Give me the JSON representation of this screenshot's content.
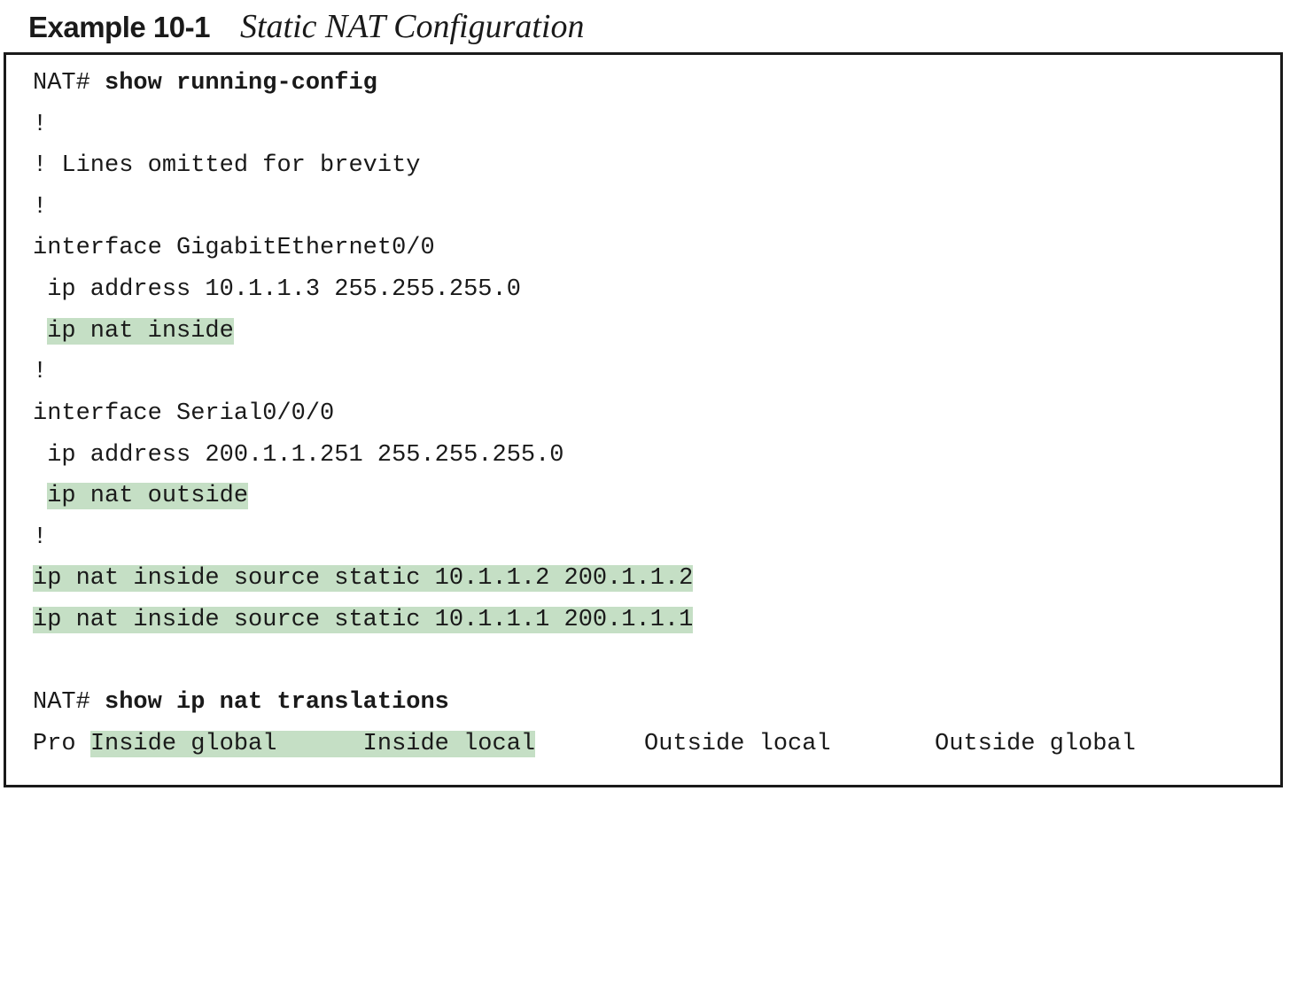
{
  "caption": {
    "label": "Example 10-1",
    "title": "Static NAT Configuration"
  },
  "lines": [
    {
      "prompt": "NAT# ",
      "command": "show running-config"
    },
    {
      "text": "!"
    },
    {
      "text": "! Lines omitted for brevity"
    },
    {
      "text": "!"
    },
    {
      "text": "interface GigabitEthernet0/0"
    },
    {
      "indent": " ",
      "text": "ip address 10.1.1.3 255.255.255.0"
    },
    {
      "indent": " ",
      "highlighted": "ip nat inside"
    },
    {
      "text": "!"
    },
    {
      "text": "interface Serial0/0/0"
    },
    {
      "indent": " ",
      "text": "ip address 200.1.1.251 255.255.255.0"
    },
    {
      "indent": " ",
      "highlighted": "ip nat outside"
    },
    {
      "text": "!"
    },
    {
      "highlighted": "ip nat inside source static 10.1.1.2 200.1.1.2"
    },
    {
      "highlighted": "ip nat inside source static 10.1.1.1 200.1.1.1"
    },
    {
      "prompt": "NAT# ",
      "command": "show ip nat translations"
    },
    {
      "pro": "Pro ",
      "inside_global": "Inside global      ",
      "inside_local": "Inside local",
      "outside_local": "Outside local",
      "outside_global": "Outside global"
    }
  ],
  "colors": {
    "highlight": "#c5dfc5",
    "text": "#1a1a1a"
  }
}
